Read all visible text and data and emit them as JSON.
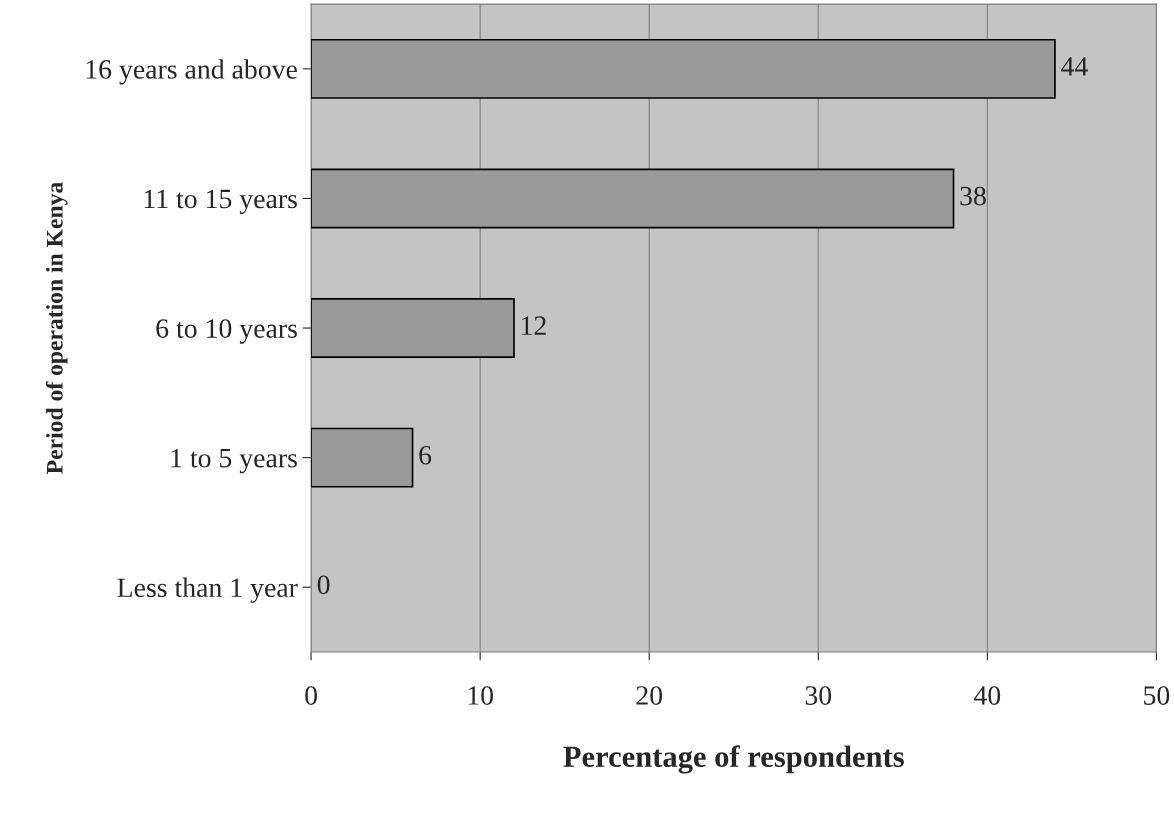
{
  "chart_data": {
    "type": "bar",
    "orientation": "horizontal",
    "xlabel": "Percentage of respondents",
    "ylabel": "Period of operation in Kenya",
    "categories": [
      "16 years and above",
      "11 to 15 years",
      "6 to 10 years",
      "1 to 5 years",
      "Less than 1 year"
    ],
    "values": [
      44,
      38,
      12,
      6,
      0
    ],
    "color": "#9a9a9a",
    "xlim": [
      0,
      50
    ],
    "xticks": [
      0,
      10,
      20,
      30,
      40,
      50
    ],
    "grid": "x",
    "data_labels": true
  }
}
